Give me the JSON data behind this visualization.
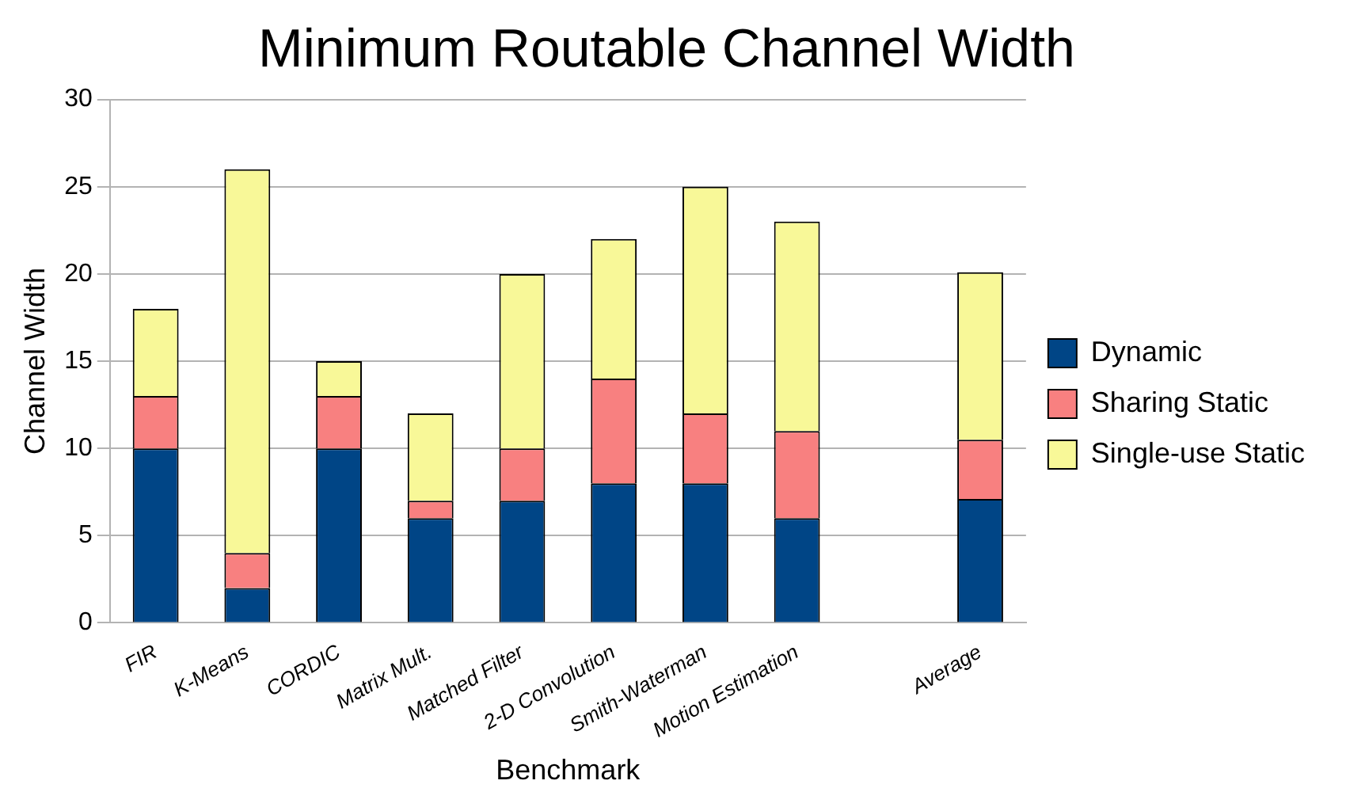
{
  "chart_data": {
    "type": "bar",
    "title": "Minimum Routable Channel Width",
    "xlabel": "Benchmark",
    "ylabel": "Channel Width",
    "categories": [
      "FIR",
      "K-Means",
      "CORDIC",
      "Matrix Mult.",
      "Matched Filter",
      "2-D Convolution",
      "Smith-Waterman",
      "Motion Estimation",
      null,
      "Average"
    ],
    "series": [
      {
        "name": "Dynamic",
        "color": "#004586",
        "values": [
          10,
          2,
          10,
          6,
          7,
          8,
          8,
          6,
          null,
          7.1
        ]
      },
      {
        "name": "Sharing Static",
        "color": "#f88080",
        "values": [
          3,
          2,
          3,
          1,
          3,
          6,
          4,
          5,
          null,
          3.4
        ]
      },
      {
        "name": "Single-use Static",
        "color": "#f8f898",
        "values": [
          5,
          22,
          2,
          5,
          10,
          8,
          13,
          12,
          null,
          9.6
        ]
      }
    ],
    "stacked": true,
    "ylim": [
      0,
      30
    ],
    "yticks": [
      0,
      5,
      10,
      15,
      20,
      25,
      30
    ],
    "grid": "y",
    "legend": "right"
  }
}
